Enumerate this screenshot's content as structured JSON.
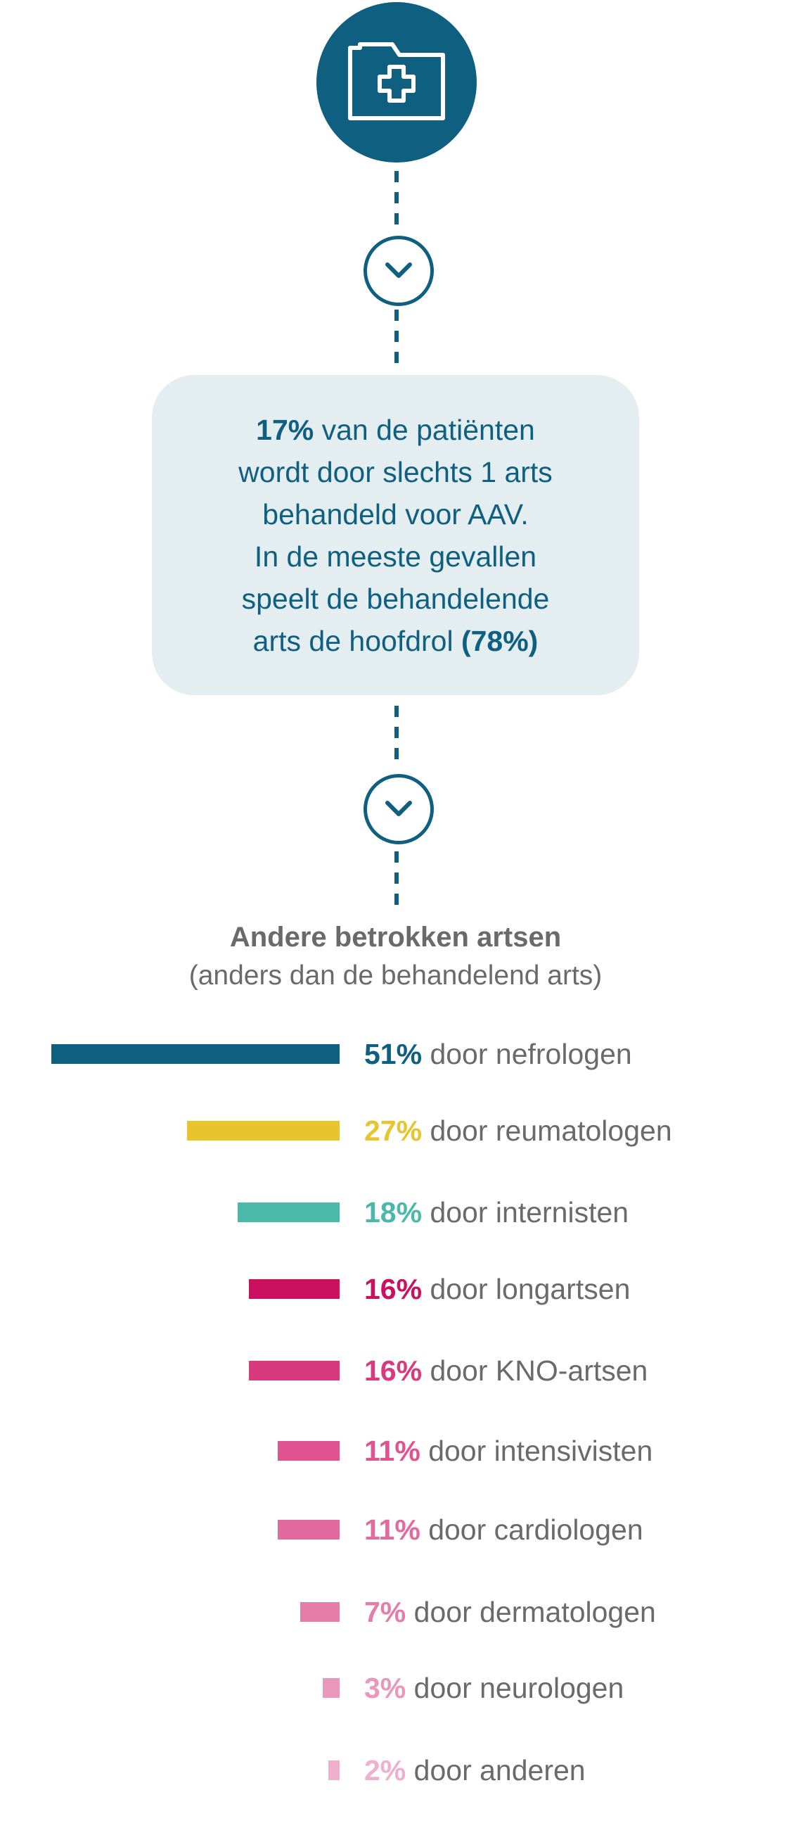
{
  "info": {
    "highlight_1": "17%",
    "line1_rest": " van de patiënten",
    "line2": "wordt door slechts 1 arts",
    "line3": "behandeld voor AAV.",
    "line4": "In de meeste gevallen",
    "line5": "speelt de behandelende",
    "line6_start": "arts de hoofdrol ",
    "highlight_2": "(78%)"
  },
  "icons": {
    "top": "medical-folder-icon",
    "step": "chevron-down-icon"
  },
  "colors": {
    "primary": "#0f6080",
    "box_bg": "#e4eef1",
    "text_gray": "#6a6a6a"
  },
  "chart_data": {
    "type": "bar",
    "orientation": "horizontal",
    "title": "Andere betrokken artsen",
    "subtitle": "(anders dan de behandelend arts)",
    "unit": "%",
    "categories": [
      "door nefrologen",
      "door reumatologen",
      "door internisten",
      "door longartsen",
      "door KNO-artsen",
      "door intensivisten",
      "door cardiologen",
      "door dermatologen",
      "door neurologen",
      "door anderen"
    ],
    "values": [
      51,
      27,
      18,
      16,
      16,
      11,
      11,
      7,
      3,
      2
    ],
    "value_labels": [
      "51%",
      "27%",
      "18%",
      "16%",
      "16%",
      "11%",
      "11%",
      "7%",
      "3%",
      "2%"
    ],
    "colors": [
      "#0f6080",
      "#e8c52e",
      "#4bb9aa",
      "#cc1060",
      "#d93a7d",
      "#df5490",
      "#e26a9e",
      "#e47ea9",
      "#e998bb",
      "#eeb0cc"
    ],
    "grid": false,
    "legend": "none"
  }
}
